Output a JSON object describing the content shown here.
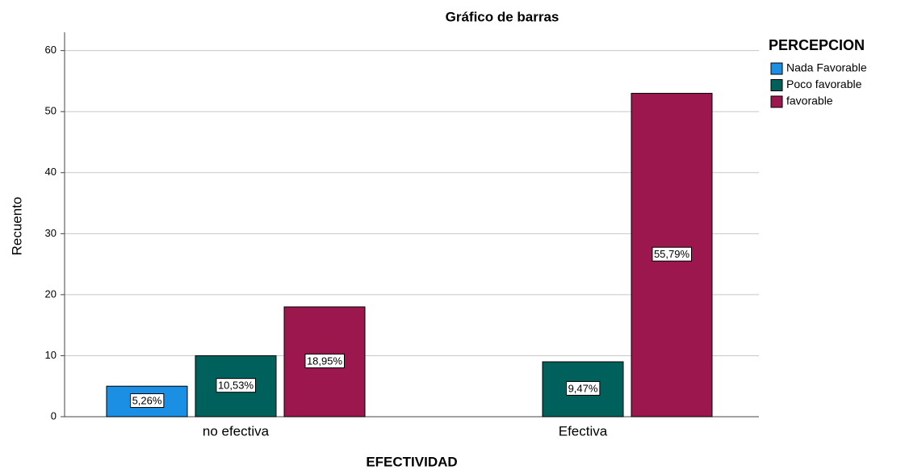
{
  "chart_data": {
    "type": "bar",
    "title": "Gráfico de barras",
    "xlabel": "EFECTIVIDAD",
    "ylabel": "Recuento",
    "legend_title": "PERCEPCION",
    "legend_position": "right",
    "categories": [
      "no efectiva",
      "Efectiva"
    ],
    "series": [
      {
        "name": "Nada Favorable",
        "color": "#1b8fe4",
        "values": [
          5,
          null
        ],
        "percent_labels": [
          "5,26%",
          null
        ]
      },
      {
        "name": "Poco favorable",
        "color": "#00605b",
        "values": [
          10,
          9
        ],
        "percent_labels": [
          "10,53%",
          "9,47%"
        ]
      },
      {
        "name": "favorable",
        "color": "#9c174d",
        "values": [
          18,
          53
        ],
        "percent_labels": [
          "18,95%",
          "55,79%"
        ]
      }
    ],
    "ylim": [
      0,
      63
    ],
    "yticks": [
      0,
      10,
      20,
      30,
      40,
      50,
      60
    ],
    "grid": true
  }
}
